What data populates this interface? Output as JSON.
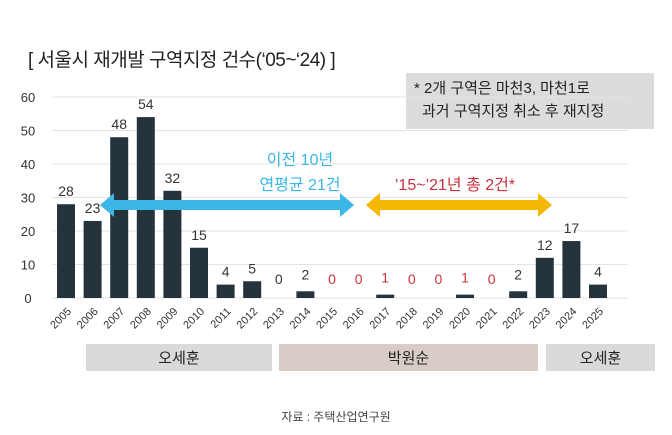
{
  "chart_data": {
    "type": "bar",
    "title": "[ 서울시 재개발 구역지정 건수(‘05~‘24) ]",
    "categories": [
      "2005",
      "2006",
      "2007",
      "2008",
      "2009",
      "2010",
      "2011",
      "2012",
      "2013",
      "2014",
      "2015",
      "2016",
      "2017",
      "2018",
      "2019",
      "2020",
      "2021",
      "2022",
      "2023",
      "2024",
      "2025"
    ],
    "values": [
      28,
      23,
      48,
      54,
      32,
      15,
      4,
      5,
      0,
      2,
      0,
      0,
      1,
      0,
      0,
      1,
      0,
      2,
      12,
      17,
      4
    ],
    "highlight_red_labels": [
      "2015",
      "2016",
      "2017",
      "2018",
      "2019",
      "2020",
      "2021"
    ],
    "ylim": [
      0,
      60
    ],
    "yticks": [
      0,
      10,
      20,
      30,
      40,
      50,
      60
    ],
    "grid": true,
    "annotations": {
      "blue_arrow": {
        "line1": "이전 10년",
        "line2": "연평균 21건",
        "from": "2006",
        "to": "2016"
      },
      "orange_arrow": {
        "text": "’15~’21년 총 2건*",
        "from": "2016",
        "to": "2022"
      }
    },
    "periods": [
      {
        "label": "오세훈",
        "from": "2006",
        "to": "2012"
      },
      {
        "label": "박원순",
        "from": "2014",
        "to": "2023"
      },
      {
        "label": "오세훈",
        "from": "2023",
        "to": "2025"
      }
    ],
    "note": [
      "* 2개 구역은 마천3, 마천1로",
      "과거 구역지정 취소 후 재지정"
    ],
    "source": "자료 : 주택산업연구원"
  },
  "colors": {
    "bar": "#25333d",
    "blue": "#3cb6e6",
    "orange": "#f5b700",
    "red": "#c8323c",
    "period_gray": "#dadada",
    "period_brown": "#d8cdc6"
  }
}
